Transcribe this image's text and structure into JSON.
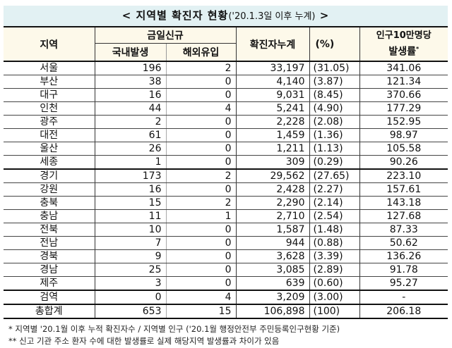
{
  "title": {
    "main": "< 지역별 확진자 현황",
    "sub": "('20.1.3일 이후 누계)",
    "end": " >"
  },
  "header": {
    "region": "지역",
    "new_today": "금일신규",
    "domestic": "국내발생",
    "imported": "해외유입",
    "cumulative": "확진자누계",
    "percent": "(%)",
    "rate_line1": "인구10만명당",
    "rate_line2": "발생률",
    "rate_mark": "*"
  },
  "rows": [
    {
      "region": "서울",
      "domestic": "196",
      "imported": "2",
      "cumulative": "33,197",
      "percent": "(31.05)",
      "rate": "341.06"
    },
    {
      "region": "부산",
      "domestic": "38",
      "imported": "0",
      "cumulative": "4,140",
      "percent": "(3.87)",
      "rate": "121.34"
    },
    {
      "region": "대구",
      "domestic": "16",
      "imported": "0",
      "cumulative": "9,031",
      "percent": "(8.45)",
      "rate": "370.66"
    },
    {
      "region": "인천",
      "domestic": "44",
      "imported": "4",
      "cumulative": "5,241",
      "percent": "(4.90)",
      "rate": "177.29"
    },
    {
      "region": "광주",
      "domestic": "2",
      "imported": "0",
      "cumulative": "2,228",
      "percent": "(2.08)",
      "rate": "152.95"
    },
    {
      "region": "대전",
      "domestic": "61",
      "imported": "0",
      "cumulative": "1,459",
      "percent": "(1.36)",
      "rate": "98.97"
    },
    {
      "region": "울산",
      "domestic": "26",
      "imported": "0",
      "cumulative": "1,211",
      "percent": "(1.13)",
      "rate": "105.58"
    },
    {
      "region": "세종",
      "domestic": "1",
      "imported": "0",
      "cumulative": "309",
      "percent": "(0.29)",
      "rate": "90.26"
    },
    {
      "region": "경기",
      "domestic": "173",
      "imported": "2",
      "cumulative": "29,562",
      "percent": "(27.65)",
      "rate": "223.10"
    },
    {
      "region": "강원",
      "domestic": "16",
      "imported": "0",
      "cumulative": "2,428",
      "percent": "(2.27)",
      "rate": "157.61"
    },
    {
      "region": "충북",
      "domestic": "15",
      "imported": "2",
      "cumulative": "2,290",
      "percent": "(2.14)",
      "rate": "143.18"
    },
    {
      "region": "충남",
      "domestic": "11",
      "imported": "1",
      "cumulative": "2,710",
      "percent": "(2.54)",
      "rate": "127.68"
    },
    {
      "region": "전북",
      "domestic": "10",
      "imported": "0",
      "cumulative": "1,587",
      "percent": "(1.48)",
      "rate": "87.33"
    },
    {
      "region": "전남",
      "domestic": "7",
      "imported": "0",
      "cumulative": "944",
      "percent": "(0.88)",
      "rate": "50.62"
    },
    {
      "region": "경북",
      "domestic": "9",
      "imported": "0",
      "cumulative": "3,628",
      "percent": "(3.39)",
      "rate": "136.26"
    },
    {
      "region": "경남",
      "domestic": "25",
      "imported": "0",
      "cumulative": "3,085",
      "percent": "(2.89)",
      "rate": "91.78"
    },
    {
      "region": "제주",
      "domestic": "3",
      "imported": "0",
      "cumulative": "639",
      "percent": "(0.60)",
      "rate": "95.27"
    },
    {
      "region": "검역",
      "domestic": "0",
      "imported": "4",
      "cumulative": "3,209",
      "percent": "(3.00)",
      "rate": "-"
    },
    {
      "region": "총합계",
      "domestic": "653",
      "imported": "15",
      "cumulative": "106,898",
      "percent": "(100)",
      "rate": "206.18"
    }
  ],
  "notes": [
    " * 지역별 '20.1월 이후 누적 확진자수 / 지역별 인구 ('20.1월 행정안전부 주민등록인구현황 기준)",
    "** 신고 기관 주소 환자 수에 대한 발생률로 실제 해당지역 발생률과 차이가 있음"
  ],
  "colors": {
    "title_bg": "#e2f1f3",
    "header_bg": "#fdf9ea",
    "border": "#111111"
  }
}
